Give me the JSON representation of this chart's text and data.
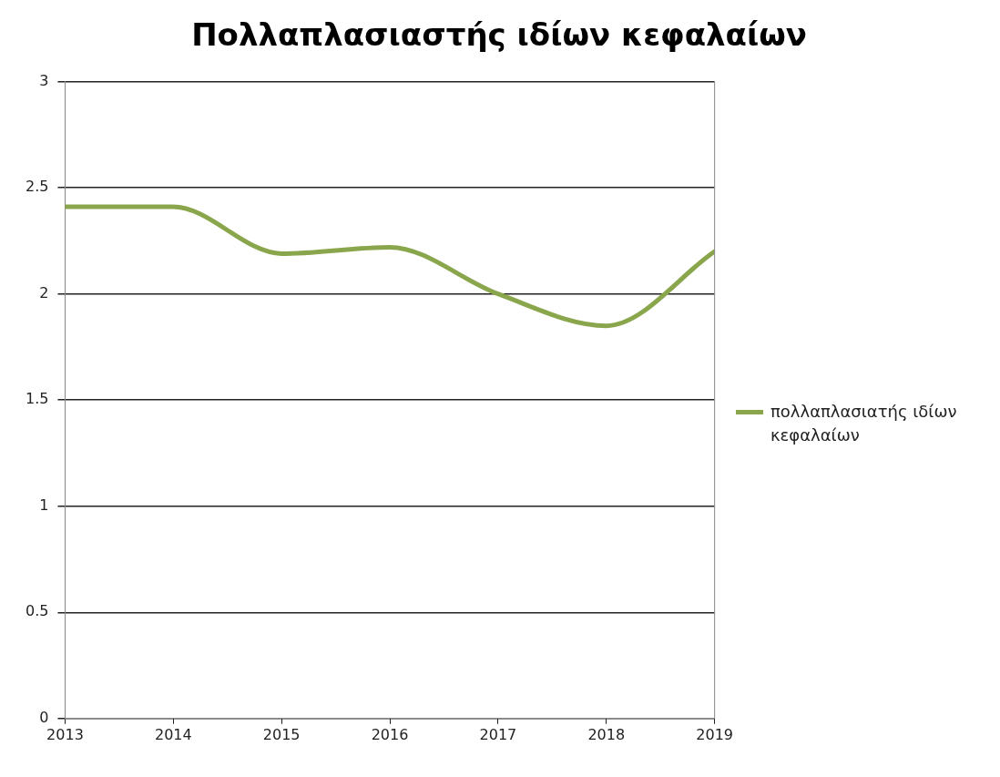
{
  "chart_data": {
    "type": "line",
    "title": "Πολλαπλασιαστής ιδίων κεφαλαίων",
    "x": [
      2013,
      2014,
      2015,
      2016,
      2017,
      2018,
      2019
    ],
    "series": [
      {
        "name": "πολλαπλασιατής ιδίων κεφαλαίων",
        "color": "#8aa64c",
        "values": [
          2.41,
          2.41,
          2.19,
          2.22,
          2.0,
          1.85,
          2.2
        ]
      }
    ],
    "xlim": [
      2013,
      2019
    ],
    "xticks": [
      2013,
      2014,
      2015,
      2016,
      2017,
      2018,
      2019
    ],
    "ylim": [
      0,
      3
    ],
    "yticks": [
      0,
      0.5,
      1,
      1.5,
      2,
      2.5,
      3
    ],
    "grid": "y",
    "legend": "right",
    "marker": "none",
    "line_style": "solid"
  }
}
